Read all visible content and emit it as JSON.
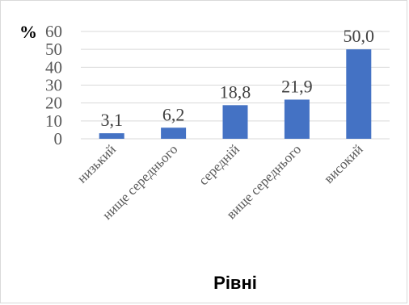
{
  "chart_data": {
    "type": "bar",
    "categories": [
      "низький",
      "нище середнього",
      "середній",
      "вище середнього",
      "високий"
    ],
    "values": [
      3.1,
      6.2,
      18.8,
      21.9,
      50.0
    ],
    "data_labels": [
      "3,1",
      "6,2",
      "18,8",
      "21,9",
      "50,0"
    ],
    "ylabel": "%",
    "xlabel": "Рівні",
    "ylim": [
      0,
      60
    ],
    "yticks": [
      "0",
      "10",
      "20",
      "30",
      "40",
      "50",
      "60"
    ],
    "grid": true,
    "bar_color": "#4472c4",
    "grid_color": "#d9d9d9"
  }
}
